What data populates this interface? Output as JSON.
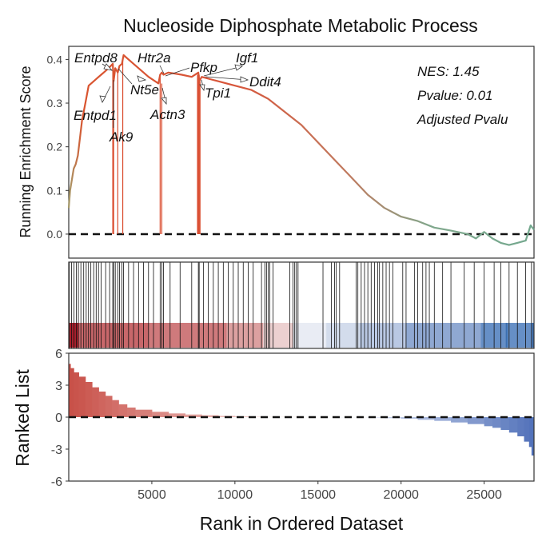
{
  "chart_data": {
    "type": "line",
    "title": "Nucleoside Diphosphate Metabolic Process",
    "xlabel": "Rank in Ordered Dataset",
    "xlim": [
      0,
      28000
    ],
    "x_ticks": [
      "5000",
      "10000",
      "15000",
      "20000",
      "25000"
    ],
    "top_panel": {
      "ylabel": "Running Enrichment Score",
      "ylim": [
        -0.055,
        0.43
      ],
      "y_ticks": [
        "0.0",
        "0.1",
        "0.2",
        "0.3",
        "0.4"
      ],
      "baseline": 0,
      "stats": [
        "NES: 1.45",
        "Pvalue: 0.01",
        "Adjusted Pvalu"
      ],
      "series": [
        {
          "x": [
            0,
            80,
            300,
            420,
            550,
            800,
            1000,
            1200,
            1500,
            1800,
            2100,
            2400,
            2650,
            2700,
            2800,
            2950,
            3050,
            3200,
            3300,
            3600,
            4200,
            4800,
            5400,
            5500,
            5600,
            5700,
            6000,
            6800,
            7400,
            7800,
            7850,
            8000,
            8500,
            9000,
            10000,
            11000,
            12000,
            13000,
            14000,
            15000,
            16000,
            17000,
            18000,
            19000,
            20000,
            21000,
            22000,
            23000,
            24000,
            24500,
            25000,
            25500,
            26000,
            26500,
            27000,
            27500,
            27800,
            28000
          ],
          "y": [
            0.06,
            0.1,
            0.15,
            0.16,
            0.18,
            0.26,
            0.3,
            0.34,
            0.35,
            0.36,
            0.37,
            0.38,
            0.39,
            0.35,
            0.38,
            0.37,
            0.385,
            0.39,
            0.41,
            0.4,
            0.38,
            0.36,
            0.345,
            0.365,
            0.37,
            0.365,
            0.37,
            0.365,
            0.36,
            0.37,
            0.35,
            0.36,
            0.355,
            0.35,
            0.34,
            0.33,
            0.31,
            0.28,
            0.25,
            0.21,
            0.17,
            0.13,
            0.09,
            0.06,
            0.04,
            0.03,
            0.015,
            0.008,
            0.0,
            -0.01,
            0.005,
            -0.01,
            -0.02,
            -0.025,
            -0.02,
            -0.015,
            0.02,
            0.01
          ]
        }
      ],
      "gene_hits": [
        {
          "gene": "Entpd8",
          "x": 2650,
          "es": 0.39
        },
        {
          "gene": "Entpd1",
          "x": 2700,
          "es": 0.35
        },
        {
          "gene": "Ak9",
          "x": 2950,
          "es": 0.37
        },
        {
          "gene": "Nt5e",
          "x": 3250,
          "es": 0.4
        },
        {
          "gene": "Htr2a",
          "x": 5500,
          "es": 0.365
        },
        {
          "gene": "Actn3",
          "x": 5600,
          "es": 0.345
        },
        {
          "gene": "Pfkp",
          "x": 7750,
          "es": 0.365
        },
        {
          "gene": "Igf1",
          "x": 7800,
          "es": 0.37
        },
        {
          "gene": "Ddit4",
          "x": 7850,
          "es": 0.365
        },
        {
          "gene": "Tpi1",
          "x": 7900,
          "es": 0.35
        }
      ]
    },
    "hit_positions": [
      30,
      170,
      310,
      460,
      580,
      730,
      900,
      1050,
      1190,
      1330,
      1500,
      1650,
      1790,
      1950,
      2220,
      2460,
      2650,
      2700,
      2800,
      2950,
      3050,
      3200,
      3300,
      3600,
      3900,
      4200,
      4500,
      4800,
      5100,
      5500,
      5600,
      5700,
      6100,
      6700,
      7400,
      7800,
      7850,
      8100,
      8400,
      8700,
      9000,
      9300,
      9600,
      9900,
      10200,
      10500,
      10800,
      11100,
      11600,
      11800,
      11900,
      12000,
      12100,
      12300,
      13300,
      13500,
      13600,
      13700,
      13800,
      15300,
      15800,
      16000,
      16100,
      16300,
      17300,
      17400,
      17600,
      17800,
      18000,
      18200,
      18400,
      18600,
      18700,
      18900,
      19100,
      19300,
      19500,
      20100,
      20300,
      20800,
      21000,
      21300,
      21500,
      21700,
      22000,
      22500,
      23000,
      23800,
      24400,
      25000,
      25600,
      26000,
      26500,
      27000,
      27500,
      27850
    ],
    "ranked_list": {
      "ylabel": "Ranked List",
      "ylim": [
        -6,
        6
      ],
      "y_ticks": [
        "-6",
        "-3",
        "0",
        "3",
        "6"
      ],
      "x": [
        0,
        100,
        300,
        600,
        1000,
        1400,
        1800,
        2200,
        2600,
        3000,
        3500,
        4000,
        5000,
        6000,
        7000,
        8000,
        9000,
        10000,
        11000,
        12000,
        14000,
        16000,
        18000,
        19000,
        20000,
        21000,
        22000,
        23000,
        24000,
        25000,
        25500,
        26000,
        26500,
        27000,
        27400,
        27700,
        27850,
        28000
      ],
      "values": [
        5.0,
        4.6,
        4.2,
        3.8,
        3.3,
        2.8,
        2.4,
        2.0,
        1.6,
        1.2,
        0.9,
        0.7,
        0.5,
        0.35,
        0.25,
        0.18,
        0.12,
        0.07,
        0.04,
        0.02,
        0.0,
        -0.02,
        -0.05,
        -0.1,
        -0.15,
        -0.25,
        -0.35,
        -0.5,
        -0.65,
        -0.85,
        -1.0,
        -1.2,
        -1.45,
        -1.8,
        -2.3,
        -2.8,
        -3.6,
        -4.3
      ]
    }
  }
}
